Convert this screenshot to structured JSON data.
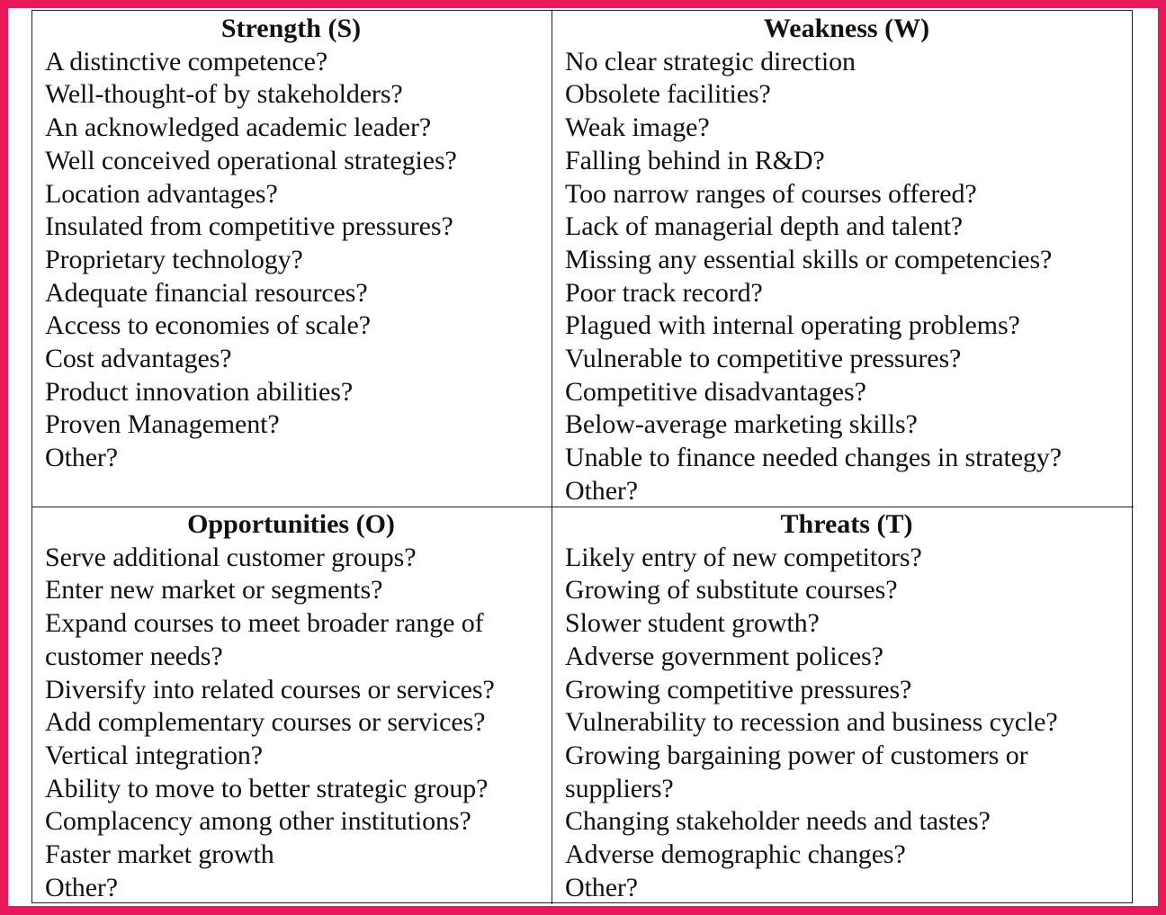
{
  "swot": {
    "strength": {
      "title": "Strength (S)",
      "items": [
        "A distinctive competence?",
        "Well-thought-of by stakeholders?",
        "An acknowledged academic leader?",
        "Well conceived operational strategies?",
        "Location advantages?",
        "Insulated from competitive pressures?",
        "Proprietary technology?",
        "Adequate financial resources?",
        "Access to economies of scale?",
        "Cost advantages?",
        "Product innovation abilities?",
        "Proven Management?",
        "Other?"
      ]
    },
    "weakness": {
      "title": "Weakness (W)",
      "items": [
        "No clear strategic direction",
        "Obsolete facilities?",
        "Weak image?",
        "Falling behind in R&D?",
        "Too narrow ranges of courses offered?",
        "Lack of managerial depth and talent?",
        "Missing any essential skills or competencies?",
        "Poor track record?",
        "Plagued with internal operating problems?",
        "Vulnerable to competitive pressures?",
        "Competitive disadvantages?",
        "Below-average marketing skills?",
        "Unable to finance needed changes in strategy?",
        "Other?"
      ]
    },
    "opportunities": {
      "title": "Opportunities (O)",
      "items": [
        "Serve additional customer groups?",
        "Enter new market or segments?",
        "Expand courses to meet broader range of",
        "customer needs?",
        "Diversify into related courses or services?",
        "Add complementary courses or services?",
        "Vertical integration?",
        "Ability to move to better strategic group?",
        "Complacency among other institutions?",
        "Faster market growth",
        "Other?"
      ]
    },
    "threats": {
      "title": "Threats (T)",
      "items": [
        "Likely entry of new competitors?",
        "Growing of substitute courses?",
        "Slower student growth?",
        "Adverse government polices?",
        "Growing competitive pressures?",
        "Vulnerability to recession and business cycle?",
        "Growing bargaining power of customers or",
        "suppliers?",
        "Changing stakeholder needs and tastes?",
        "Adverse demographic changes?",
        "Other?"
      ]
    }
  },
  "colors": {
    "border_frame": "#e8185a",
    "background": "#ffffff",
    "text": "#111111"
  }
}
